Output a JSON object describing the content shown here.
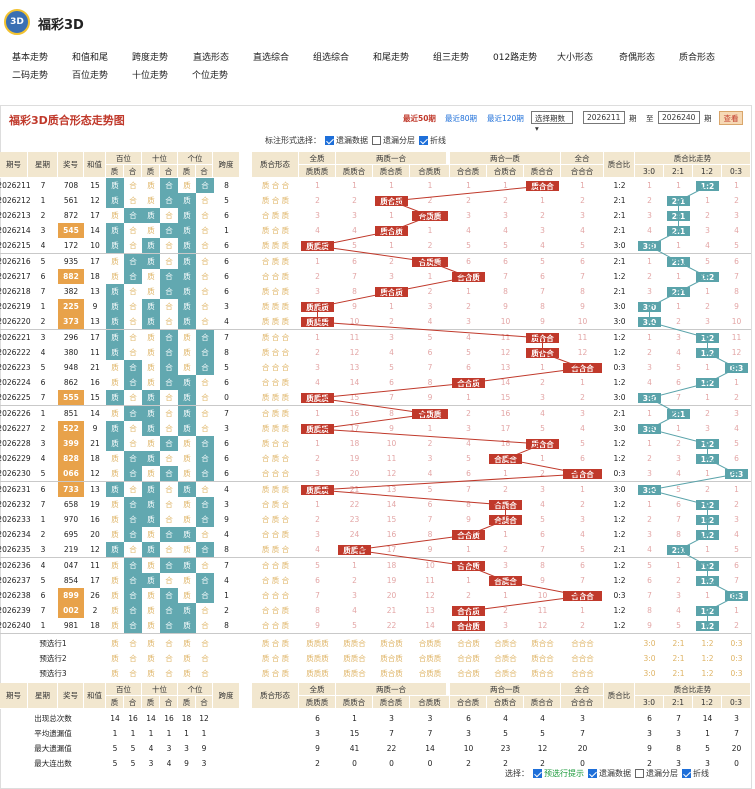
{
  "app": {
    "title": "福彩3D",
    "logo": "3D"
  },
  "nav": [
    "基本走势",
    "和值和尾",
    "跨度走势",
    "直选形态",
    "直选综合",
    "组选综合",
    "和尾走势",
    "组三走势",
    "012路走势",
    "大小形态",
    "奇偶形态",
    "质合形态",
    "二码走势",
    "百位走势",
    "十位走势",
    "个位走势"
  ],
  "panel": {
    "title": "福彩3D质合形态走势图",
    "links": [
      "最近50期",
      "最近80期",
      "最近120期"
    ],
    "select": "选择期数",
    "from": "2026211",
    "qi1": "期",
    "to": "至",
    "end": "2026240",
    "qi2": "期",
    "query": "查看",
    "option_label": "标注形式选择：",
    "options": [
      {
        "label": "遗漏数据",
        "on": true
      },
      {
        "label": "遗漏分层",
        "on": false
      },
      {
        "label": "折线",
        "on": true
      }
    ]
  },
  "headers": {
    "issue": "期号",
    "star": "星期",
    "award": "奖号",
    "sum": "和值",
    "bai": "百位",
    "shi": "十位",
    "ge": "个位",
    "span": "跨度",
    "form": "质合形态",
    "quanzhi": "全质",
    "lzyh": "两质一合",
    "lhyz": "两合一质",
    "quanhe": "全合",
    "ratio": "质合比",
    "ratio_trend": "质合比走势",
    "zhi": "质",
    "he": "合",
    "zzz": "质质质",
    "zzh": "质质合",
    "zhz": "质合质",
    "hzz": "合质质",
    "hhz": "合合质",
    "hzh": "合质合",
    "zhh": "质合合",
    "hhh": "合合合",
    "r30": "3:0",
    "r21": "2:1",
    "r12": "1:2",
    "r03": "0:3"
  },
  "rows": [
    {
      "issue": "2026211",
      "star": "7",
      "award": "708",
      "sum": "15",
      "ratio": "1:2"
    },
    {
      "issue": "2026212",
      "star": "1",
      "award": "561",
      "sum": "12",
      "ratio": "2:1"
    },
    {
      "issue": "2026213",
      "star": "2",
      "award": "872",
      "sum": "17",
      "ratio": "2:1"
    },
    {
      "issue": "2026214",
      "star": "3",
      "award": "545",
      "sum": "14",
      "ratio": "2:1"
    },
    {
      "issue": "2026215",
      "star": "4",
      "award": "172",
      "sum": "10",
      "ratio": "3:0"
    },
    {
      "issue": "2026216",
      "star": "5",
      "award": "935",
      "sum": "17",
      "ratio": "2:1"
    },
    {
      "issue": "2026217",
      "star": "6",
      "award": "882",
      "sum": "18",
      "ratio": "1:2"
    },
    {
      "issue": "2026218",
      "star": "7",
      "award": "382",
      "sum": "13",
      "ratio": "2:1"
    },
    {
      "issue": "2026219",
      "star": "1",
      "award": "225",
      "sum": "9",
      "ratio": "3:0"
    },
    {
      "issue": "2026220",
      "star": "2",
      "award": "373",
      "sum": "13",
      "ratio": "3:0"
    },
    {
      "issue": "2026221",
      "star": "3",
      "award": "296",
      "sum": "17",
      "ratio": "1:2"
    },
    {
      "issue": "2026222",
      "star": "4",
      "award": "380",
      "award2": "",
      "sum": "11",
      "ratio": "1:2"
    },
    {
      "issue": "2026223",
      "star": "5",
      "award": "948",
      "sum": "21",
      "ratio": "0:3"
    },
    {
      "issue": "2026224",
      "star": "6",
      "award": "862",
      "sum": "16",
      "ratio": "1:2"
    },
    {
      "issue": "2026225",
      "star": "7",
      "award": "555",
      "sum": "15",
      "ratio": "3:0"
    },
    {
      "issue": "2026226",
      "star": "1",
      "award": "851",
      "sum": "14",
      "ratio": "2:1"
    },
    {
      "issue": "2026227",
      "star": "2",
      "award": "522",
      "sum": "9",
      "ratio": "3:0"
    },
    {
      "issue": "2026228",
      "star": "3",
      "award": "399",
      "sum": "21",
      "ratio": "1:2"
    },
    {
      "issue": "2026229",
      "star": "4",
      "award": "828",
      "sum": "18",
      "ratio": "1:2"
    },
    {
      "issue": "2026230",
      "star": "5",
      "award": "066",
      "sum": "12",
      "ratio": "0:3"
    },
    {
      "issue": "2026231",
      "star": "6",
      "award": "733",
      "sum": "13",
      "ratio": "3:0"
    },
    {
      "issue": "2026232",
      "star": "7",
      "award": "658",
      "sum": "19",
      "ratio": "1:2"
    },
    {
      "issue": "2026233",
      "star": "1",
      "award": "970",
      "sum": "16",
      "ratio": "1:2"
    },
    {
      "issue": "2026234",
      "star": "2",
      "award": "695",
      "award2": "",
      "sum": "20",
      "ratio": "1:2"
    },
    {
      "issue": "2026235",
      "star": "3",
      "award": "219",
      "sum": "12",
      "ratio": "2:1"
    },
    {
      "issue": "2026236",
      "star": "4",
      "award": "047",
      "sum": "11",
      "ratio": "1:2"
    },
    {
      "issue": "2026237",
      "star": "5",
      "award": "854",
      "sum": "17",
      "ratio": "1:2"
    },
    {
      "issue": "2026238",
      "star": "6",
      "award": "899",
      "sum": "26",
      "ratio": "0:3"
    },
    {
      "issue": "2026239",
      "star": "7",
      "award": "002",
      "sum": "2",
      "ratio": "1:2"
    },
    {
      "issue": "2026240",
      "star": "1",
      "award": "981",
      "sum": "18",
      "ratio": "1:2"
    }
  ],
  "predict": [
    "预选行1",
    "预选行2",
    "预选行3"
  ],
  "stats": [
    {
      "label": "出现总次数",
      "vals": [
        "14",
        "16",
        "14",
        "16",
        "18",
        "12",
        "",
        "",
        "6",
        "1",
        "3",
        "3",
        "6",
        "4",
        "4",
        "3",
        "",
        "6",
        "7",
        "14",
        "3"
      ]
    },
    {
      "label": "平均遗漏值",
      "vals": [
        "1",
        "1",
        "1",
        "1",
        "1",
        "1",
        "",
        "",
        "3",
        "15",
        "7",
        "7",
        "3",
        "5",
        "5",
        "7",
        "",
        "3",
        "3",
        "1",
        "7"
      ]
    },
    {
      "label": "最大遗漏值",
      "vals": [
        "5",
        "5",
        "4",
        "3",
        "3",
        "9",
        "",
        "",
        "9",
        "41",
        "22",
        "14",
        "10",
        "23",
        "12",
        "20",
        "",
        "9",
        "8",
        "5",
        "20"
      ]
    },
    {
      "label": "最大连出数",
      "vals": [
        "5",
        "5",
        "3",
        "4",
        "9",
        "3",
        "",
        "",
        "2",
        "0",
        "0",
        "0",
        "2",
        "2",
        "2",
        "0",
        "",
        "2",
        "3",
        "3",
        "0"
      ]
    }
  ],
  "footer": {
    "label": "选择：",
    "opts": [
      {
        "label": "预选行提示",
        "on": true,
        "green": true
      },
      {
        "label": "遗漏数据",
        "on": true
      },
      {
        "label": "遗漏分层",
        "on": false
      },
      {
        "label": "折线",
        "on": true
      }
    ]
  }
}
